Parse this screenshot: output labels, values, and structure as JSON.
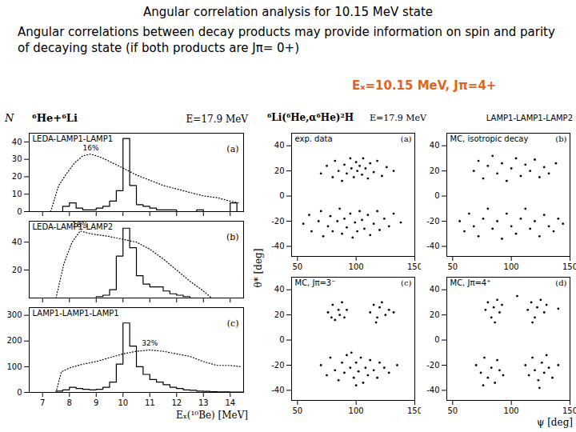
{
  "header": {
    "title": "Angular correlation analysis for 10.15 MeV state",
    "text": "Angular correlations between decay products may provide information on spin and parity of decaying state (if both products are Jπ= 0+)",
    "highlight": "Eₓ=10.15 MeV, Jπ=4+"
  },
  "left_panel": {
    "title": "⁶He+⁶Li",
    "subtitle": "E=17.9 MeV",
    "x_label": "Eₓ(¹⁰Be) [MeV]",
    "y_label": "N"
  },
  "right_panel": {
    "title": "⁶Li(⁶He,α⁶He)²H",
    "subtitle": "E=17.9 MeV",
    "detectors": "LAMP1-LAMP1-LAMP2",
    "x_label": "ψ [deg]",
    "y_label": "θ* [deg]"
  },
  "chart_data": [
    {
      "type": "histogram",
      "title": "LEDA-LAMP1-LAMP1",
      "label": "(a)",
      "color": "#000000",
      "bins": [
        7.5,
        7.75,
        8,
        8.25,
        8.5,
        8.75,
        9,
        9.25,
        9.5,
        9.75,
        10,
        10.25,
        10.5,
        10.75,
        11,
        11.25,
        11.5,
        11.75,
        12,
        12.25,
        12.5,
        12.75,
        13,
        13.25,
        13.5,
        13.75,
        14,
        14.25,
        14.5
      ],
      "counts": [
        0,
        3,
        5,
        2,
        1,
        1,
        2,
        3,
        6,
        12,
        42,
        15,
        4,
        3,
        2,
        1,
        1,
        1,
        0,
        0,
        0,
        1,
        0,
        0,
        0,
        0,
        5,
        0
      ],
      "efficiency": {
        "x": [
          7.3,
          7.6,
          7.9,
          8.2,
          8.5,
          8.8,
          9.2,
          9.6,
          10,
          10.5,
          11,
          11.5,
          12,
          12.5,
          13,
          13.5,
          14,
          14.3
        ],
        "values": [
          0,
          15,
          22,
          28,
          32,
          33,
          31,
          28,
          25,
          21,
          18,
          15,
          13,
          11,
          9,
          8,
          6,
          5
        ],
        "label": "16%",
        "line_style": "dotted"
      },
      "xlim": [
        6.5,
        14.5
      ],
      "xticks": [
        7,
        8,
        9,
        10,
        11,
        12,
        13,
        14
      ],
      "ylim": [
        0,
        45
      ],
      "yticks": [
        0,
        10,
        20,
        30,
        40
      ],
      "tick_labels": "y"
    },
    {
      "type": "histogram",
      "title": "LEDA-LAMP1-LAMP2",
      "label": "(b)",
      "color": "#000000",
      "bins": [
        7.5,
        7.75,
        8,
        8.25,
        8.5,
        8.75,
        9,
        9.25,
        9.5,
        9.75,
        10,
        10.25,
        10.5,
        10.75,
        11,
        11.25,
        11.5,
        11.75,
        12,
        12.25,
        12.5,
        12.75,
        13,
        13.25,
        13.5,
        13.75,
        14,
        14.25,
        14.5
      ],
      "counts": [
        0,
        0,
        0,
        0,
        0,
        0,
        1,
        2,
        6,
        30,
        50,
        36,
        16,
        10,
        8,
        8,
        5,
        3,
        2,
        1,
        0,
        0,
        0,
        0,
        0,
        0,
        0,
        0
      ],
      "efficiency": {
        "x": [
          7.5,
          7.8,
          8.1,
          8.4,
          8.8,
          9.5,
          10,
          10.5,
          11,
          11.5,
          12,
          12.5,
          13,
          13.3
        ],
        "values": [
          0,
          25,
          40,
          48,
          46,
          44,
          42,
          40,
          35,
          28,
          20,
          12,
          5,
          0
        ],
        "label": "18%",
        "line_style": "dotted"
      },
      "xlim": [
        6.5,
        14.5
      ],
      "xticks": [
        7,
        8,
        9,
        10,
        11,
        12,
        13,
        14
      ],
      "ylim": [
        0,
        55
      ],
      "yticks": [
        20,
        40
      ],
      "tick_labels": "y"
    },
    {
      "type": "histogram",
      "title": "LAMP1-LAMP1-LAMP1",
      "label": "(c)",
      "color": "#000000",
      "bins": [
        7.5,
        7.75,
        8,
        8.25,
        8.5,
        8.75,
        9,
        9.25,
        9.5,
        9.75,
        10,
        10.25,
        10.5,
        10.75,
        11,
        11.25,
        11.5,
        11.75,
        12,
        12.25,
        12.5,
        12.75,
        13,
        13.25,
        13.5,
        13.75,
        14,
        14.25,
        14.5
      ],
      "counts": [
        5,
        10,
        20,
        15,
        12,
        10,
        12,
        20,
        40,
        110,
        270,
        180,
        100,
        70,
        50,
        40,
        30,
        20,
        15,
        10,
        8,
        5,
        4,
        3,
        2,
        2,
        1,
        1
      ],
      "efficiency": {
        "x": [
          7.5,
          7.7,
          8,
          8.5,
          9,
          9.5,
          10,
          10.5,
          11,
          11.5,
          12,
          12.5,
          13,
          13.5,
          14,
          14.4
        ],
        "values": [
          0,
          80,
          95,
          110,
          120,
          135,
          150,
          160,
          165,
          160,
          150,
          140,
          120,
          105,
          105,
          100
        ],
        "label": "32%",
        "line_style": "dotted"
      },
      "xlim": [
        6.5,
        14.5
      ],
      "xticks": [
        7,
        8,
        9,
        10,
        11,
        12,
        13,
        14
      ],
      "ylim": [
        0,
        330
      ],
      "yticks": [
        0,
        100,
        200,
        300
      ],
      "tick_labels": true
    },
    {
      "type": "scatter",
      "title": "exp. data",
      "label": "(a)",
      "color": "#000000",
      "marker": "dot",
      "points": [
        [
          70,
          18
        ],
        [
          75,
          24
        ],
        [
          80,
          15
        ],
        [
          82,
          28
        ],
        [
          85,
          20
        ],
        [
          88,
          12
        ],
        [
          90,
          25
        ],
        [
          92,
          18
        ],
        [
          95,
          30
        ],
        [
          96,
          22
        ],
        [
          98,
          15
        ],
        [
          100,
          27
        ],
        [
          101,
          20
        ],
        [
          103,
          24
        ],
        [
          105,
          17
        ],
        [
          106,
          30
        ],
        [
          108,
          22
        ],
        [
          110,
          14
        ],
        [
          112,
          26
        ],
        [
          115,
          19
        ],
        [
          118,
          28
        ],
        [
          122,
          16
        ],
        [
          126,
          23
        ],
        [
          132,
          20
        ],
        [
          55,
          -22
        ],
        [
          60,
          -15
        ],
        [
          62,
          -28
        ],
        [
          68,
          -20
        ],
        [
          70,
          -12
        ],
        [
          72,
          -32
        ],
        [
          76,
          -24
        ],
        [
          78,
          -16
        ],
        [
          80,
          -28
        ],
        [
          84,
          -20
        ],
        [
          86,
          -10
        ],
        [
          88,
          -30
        ],
        [
          90,
          -18
        ],
        [
          92,
          -25
        ],
        [
          95,
          -14
        ],
        [
          97,
          -33
        ],
        [
          99,
          -21
        ],
        [
          101,
          -28
        ],
        [
          103,
          -12
        ],
        [
          105,
          -19
        ],
        [
          107,
          -26
        ],
        [
          110,
          -15
        ],
        [
          112,
          -31
        ],
        [
          115,
          -22
        ],
        [
          118,
          -12
        ],
        [
          120,
          -27
        ],
        [
          124,
          -18
        ],
        [
          128,
          -24
        ],
        [
          132,
          -14
        ],
        [
          138,
          -21
        ]
      ],
      "xlim": [
        45,
        150
      ],
      "xticks": [
        50,
        100,
        150
      ],
      "ylim": [
        -48,
        50
      ],
      "yticks": [
        -40,
        -20,
        0,
        20,
        40
      ]
    },
    {
      "type": "scatter",
      "title": "MC, isotropic decay",
      "label": "(b)",
      "color": "#000000",
      "marker": "dot",
      "points": [
        [
          68,
          20
        ],
        [
          72,
          28
        ],
        [
          76,
          14
        ],
        [
          80,
          24
        ],
        [
          84,
          32
        ],
        [
          88,
          18
        ],
        [
          92,
          26
        ],
        [
          96,
          12
        ],
        [
          100,
          22
        ],
        [
          104,
          30
        ],
        [
          108,
          16
        ],
        [
          112,
          25
        ],
        [
          116,
          20
        ],
        [
          120,
          29
        ],
        [
          124,
          15
        ],
        [
          128,
          23
        ],
        [
          132,
          18
        ],
        [
          138,
          26
        ],
        [
          56,
          -20
        ],
        [
          60,
          -28
        ],
        [
          64,
          -14
        ],
        [
          68,
          -24
        ],
        [
          72,
          -32
        ],
        [
          76,
          -18
        ],
        [
          80,
          -10
        ],
        [
          84,
          -26
        ],
        [
          88,
          -20
        ],
        [
          92,
          -34
        ],
        [
          96,
          -14
        ],
        [
          100,
          -24
        ],
        [
          104,
          -30
        ],
        [
          108,
          -18
        ],
        [
          112,
          -10
        ],
        [
          116,
          -26
        ],
        [
          120,
          -20
        ],
        [
          124,
          -32
        ],
        [
          128,
          -15
        ],
        [
          132,
          -24
        ],
        [
          136,
          -28
        ],
        [
          140,
          -18
        ],
        [
          144,
          -22
        ]
      ],
      "xlim": [
        45,
        150
      ],
      "xticks": [
        50,
        100,
        150
      ],
      "ylim": [
        -48,
        50
      ],
      "yticks": [
        -40,
        -20,
        0,
        20,
        40
      ]
    },
    {
      "type": "scatter",
      "title": "MC, Jπ=3⁻",
      "label": "(c)",
      "color": "#000000",
      "marker": "dot",
      "points": [
        [
          76,
          22
        ],
        [
          80,
          28
        ],
        [
          82,
          16
        ],
        [
          85,
          24
        ],
        [
          88,
          30
        ],
        [
          90,
          18
        ],
        [
          92,
          24
        ],
        [
          86,
          20
        ],
        [
          79,
          18
        ],
        [
          112,
          22
        ],
        [
          115,
          28
        ],
        [
          118,
          18
        ],
        [
          120,
          26
        ],
        [
          122,
          30
        ],
        [
          125,
          20
        ],
        [
          128,
          24
        ],
        [
          117,
          14
        ],
        [
          132,
          22
        ],
        [
          70,
          -20
        ],
        [
          75,
          -28
        ],
        [
          78,
          -14
        ],
        [
          82,
          -24
        ],
        [
          85,
          -32
        ],
        [
          88,
          -18
        ],
        [
          90,
          -26
        ],
        [
          92,
          -12
        ],
        [
          95,
          -22
        ],
        [
          98,
          -30
        ],
        [
          100,
          -18
        ],
        [
          102,
          -25
        ],
        [
          104,
          -14
        ],
        [
          106,
          -34
        ],
        [
          108,
          -22
        ],
        [
          110,
          -28
        ],
        [
          112,
          -16
        ],
        [
          115,
          -24
        ],
        [
          118,
          -30
        ],
        [
          120,
          -18
        ],
        [
          124,
          -22
        ],
        [
          128,
          -26
        ],
        [
          135,
          -20
        ],
        [
          96,
          -10
        ],
        [
          100,
          -36
        ]
      ],
      "xlim": [
        45,
        150
      ],
      "xticks": [
        50,
        100,
        150
      ],
      "ylim": [
        -48,
        50
      ],
      "yticks": [
        -40,
        -20,
        0,
        20,
        40
      ]
    },
    {
      "type": "scatter",
      "title": "MC, Jπ=4⁺",
      "label": "(d)",
      "color": "#000000",
      "marker": "dot",
      "points": [
        [
          78,
          24
        ],
        [
          80,
          30
        ],
        [
          83,
          18
        ],
        [
          85,
          26
        ],
        [
          88,
          32
        ],
        [
          90,
          22
        ],
        [
          86,
          14
        ],
        [
          92,
          28
        ],
        [
          114,
          24
        ],
        [
          117,
          30
        ],
        [
          120,
          18
        ],
        [
          122,
          26
        ],
        [
          125,
          32
        ],
        [
          128,
          22
        ],
        [
          118,
          14
        ],
        [
          130,
          28
        ],
        [
          105,
          35
        ],
        [
          140,
          25
        ],
        [
          70,
          -20
        ],
        [
          74,
          -26
        ],
        [
          77,
          -14
        ],
        [
          80,
          -30
        ],
        [
          83,
          -22
        ],
        [
          86,
          -34
        ],
        [
          88,
          -16
        ],
        [
          90,
          -24
        ],
        [
          93,
          -28
        ],
        [
          76,
          -36
        ],
        [
          112,
          -20
        ],
        [
          115,
          -28
        ],
        [
          118,
          -14
        ],
        [
          120,
          -24
        ],
        [
          123,
          -32
        ],
        [
          126,
          -18
        ],
        [
          128,
          -26
        ],
        [
          130,
          -12
        ],
        [
          132,
          -22
        ],
        [
          135,
          -30
        ],
        [
          124,
          -38
        ],
        [
          140,
          -20
        ]
      ],
      "xlim": [
        45,
        150
      ],
      "xticks": [
        50,
        100,
        150
      ],
      "ylim": [
        -48,
        50
      ],
      "yticks": [
        -40,
        -20,
        0,
        20,
        40
      ]
    }
  ]
}
